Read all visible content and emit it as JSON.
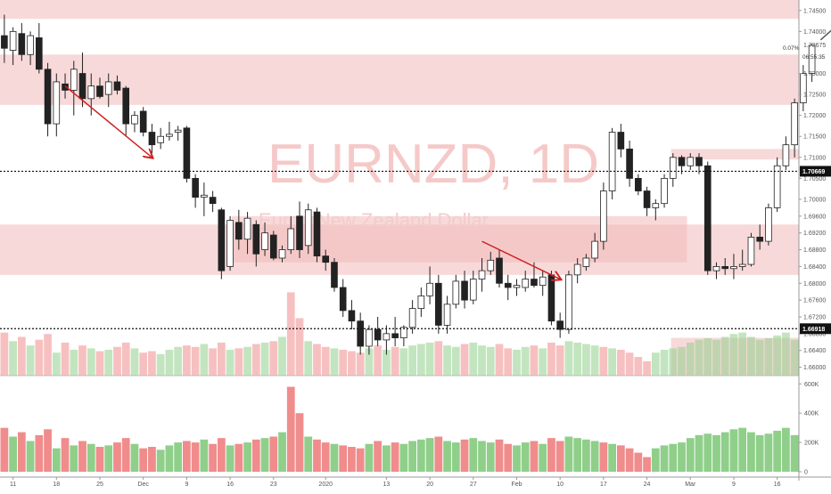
{
  "chart_data": {
    "type": "candlestick",
    "title": "EURNZD, 1D",
    "subtitle": "Euro / New Zealand Dollar",
    "interval": "1D",
    "price_axis": {
      "ylim": [
        1.658,
        1.7475
      ],
      "ticks": [
        "1.74500",
        "1.74000",
        "1.73000",
        "1.72500",
        "1.72000",
        "1.71500",
        "1.71000",
        "1.70500",
        "1.70000",
        "1.69600",
        "1.69200",
        "1.68800",
        "1.68400",
        "1.68000",
        "1.67600",
        "1.67200",
        "1.66800",
        "1.66400",
        "1.66000"
      ],
      "last_price": "1.73675",
      "last_change": "0.07%",
      "countdown": "06:55:35",
      "level_upper": "1.70669",
      "level_lower": "1.66918"
    },
    "volume_axis": {
      "ylim": [
        0,
        620
      ],
      "ticks": [
        "600K",
        "400K",
        "200K",
        "0"
      ]
    },
    "x_axis": {
      "ticks": [
        {
          "label": "11",
          "idx": 1
        },
        {
          "label": "18",
          "idx": 6
        },
        {
          "label": "25",
          "idx": 11
        },
        {
          "label": "Dec",
          "idx": 16
        },
        {
          "label": "9",
          "idx": 21
        },
        {
          "label": "16",
          "idx": 26
        },
        {
          "label": "23",
          "idx": 31
        },
        {
          "label": "2020",
          "idx": 37
        },
        {
          "label": "13",
          "idx": 44
        },
        {
          "label": "20",
          "idx": 49
        },
        {
          "label": "27",
          "idx": 54
        },
        {
          "label": "Feb",
          "idx": 59
        },
        {
          "label": "10",
          "idx": 64
        },
        {
          "label": "17",
          "idx": 69
        },
        {
          "label": "24",
          "idx": 74
        },
        {
          "label": "Mar",
          "idx": 79
        },
        {
          "label": "9",
          "idx": 84
        },
        {
          "label": "16",
          "idx": 89
        }
      ],
      "total_slots": 92
    },
    "candles": [
      {
        "o": 1.739,
        "h": 1.744,
        "l": 1.7325,
        "c": 1.736
      },
      {
        "o": 1.7355,
        "h": 1.741,
        "l": 1.732,
        "c": 1.74
      },
      {
        "o": 1.7395,
        "h": 1.742,
        "l": 1.733,
        "c": 1.7345
      },
      {
        "o": 1.7345,
        "h": 1.74,
        "l": 1.732,
        "c": 1.739
      },
      {
        "o": 1.7385,
        "h": 1.742,
        "l": 1.73,
        "c": 1.731
      },
      {
        "o": 1.731,
        "h": 1.7325,
        "l": 1.715,
        "c": 1.718
      },
      {
        "o": 1.718,
        "h": 1.73,
        "l": 1.715,
        "c": 1.728
      },
      {
        "o": 1.7275,
        "h": 1.73,
        "l": 1.724,
        "c": 1.726
      },
      {
        "o": 1.726,
        "h": 1.733,
        "l": 1.72,
        "c": 1.731
      },
      {
        "o": 1.73,
        "h": 1.735,
        "l": 1.722,
        "c": 1.724
      },
      {
        "o": 1.724,
        "h": 1.73,
        "l": 1.72,
        "c": 1.727
      },
      {
        "o": 1.727,
        "h": 1.729,
        "l": 1.724,
        "c": 1.7245
      },
      {
        "o": 1.725,
        "h": 1.73,
        "l": 1.722,
        "c": 1.728
      },
      {
        "o": 1.728,
        "h": 1.7295,
        "l": 1.725,
        "c": 1.726
      },
      {
        "o": 1.7265,
        "h": 1.727,
        "l": 1.715,
        "c": 1.718
      },
      {
        "o": 1.718,
        "h": 1.721,
        "l": 1.716,
        "c": 1.72
      },
      {
        "o": 1.721,
        "h": 1.722,
        "l": 1.715,
        "c": 1.716
      },
      {
        "o": 1.716,
        "h": 1.718,
        "l": 1.711,
        "c": 1.713
      },
      {
        "o": 1.7135,
        "h": 1.717,
        "l": 1.712,
        "c": 1.715
      },
      {
        "o": 1.715,
        "h": 1.7185,
        "l": 1.714,
        "c": 1.7155
      },
      {
        "o": 1.716,
        "h": 1.7175,
        "l": 1.714,
        "c": 1.7165
      },
      {
        "o": 1.717,
        "h": 1.7175,
        "l": 1.704,
        "c": 1.705
      },
      {
        "o": 1.705,
        "h": 1.706,
        "l": 1.698,
        "c": 1.7005
      },
      {
        "o": 1.7005,
        "h": 1.704,
        "l": 1.696,
        "c": 1.701
      },
      {
        "o": 1.7005,
        "h": 1.702,
        "l": 1.697,
        "c": 1.699
      },
      {
        "o": 1.6975,
        "h": 1.698,
        "l": 1.681,
        "c": 1.683
      },
      {
        "o": 1.684,
        "h": 1.696,
        "l": 1.683,
        "c": 1.695
      },
      {
        "o": 1.6945,
        "h": 1.6975,
        "l": 1.688,
        "c": 1.6905
      },
      {
        "o": 1.6905,
        "h": 1.697,
        "l": 1.687,
        "c": 1.6955
      },
      {
        "o": 1.694,
        "h": 1.695,
        "l": 1.684,
        "c": 1.687
      },
      {
        "o": 1.688,
        "h": 1.6945,
        "l": 1.6865,
        "c": 1.692
      },
      {
        "o": 1.6915,
        "h": 1.6925,
        "l": 1.6855,
        "c": 1.686
      },
      {
        "o": 1.686,
        "h": 1.689,
        "l": 1.685,
        "c": 1.688
      },
      {
        "o": 1.688,
        "h": 1.696,
        "l": 1.687,
        "c": 1.693
      },
      {
        "o": 1.696,
        "h": 1.6995,
        "l": 1.686,
        "c": 1.688
      },
      {
        "o": 1.689,
        "h": 1.699,
        "l": 1.687,
        "c": 1.6975
      },
      {
        "o": 1.697,
        "h": 1.698,
        "l": 1.685,
        "c": 1.6865
      },
      {
        "o": 1.6865,
        "h": 1.688,
        "l": 1.683,
        "c": 1.685
      },
      {
        "o": 1.685,
        "h": 1.686,
        "l": 1.678,
        "c": 1.679
      },
      {
        "o": 1.679,
        "h": 1.681,
        "l": 1.672,
        "c": 1.6735
      },
      {
        "o": 1.6735,
        "h": 1.676,
        "l": 1.669,
        "c": 1.671
      },
      {
        "o": 1.671,
        "h": 1.673,
        "l": 1.663,
        "c": 1.665
      },
      {
        "o": 1.665,
        "h": 1.67,
        "l": 1.663,
        "c": 1.669
      },
      {
        "o": 1.669,
        "h": 1.672,
        "l": 1.665,
        "c": 1.6665
      },
      {
        "o": 1.6665,
        "h": 1.67,
        "l": 1.663,
        "c": 1.668
      },
      {
        "o": 1.668,
        "h": 1.672,
        "l": 1.665,
        "c": 1.667
      },
      {
        "o": 1.667,
        "h": 1.67,
        "l": 1.665,
        "c": 1.6695
      },
      {
        "o": 1.6695,
        "h": 1.676,
        "l": 1.668,
        "c": 1.674
      },
      {
        "o": 1.674,
        "h": 1.679,
        "l": 1.672,
        "c": 1.677
      },
      {
        "o": 1.677,
        "h": 1.684,
        "l": 1.675,
        "c": 1.68
      },
      {
        "o": 1.68,
        "h": 1.682,
        "l": 1.668,
        "c": 1.67
      },
      {
        "o": 1.67,
        "h": 1.677,
        "l": 1.668,
        "c": 1.675
      },
      {
        "o": 1.675,
        "h": 1.682,
        "l": 1.674,
        "c": 1.6805
      },
      {
        "o": 1.6805,
        "h": 1.683,
        "l": 1.674,
        "c": 1.676
      },
      {
        "o": 1.676,
        "h": 1.683,
        "l": 1.675,
        "c": 1.681
      },
      {
        "o": 1.681,
        "h": 1.686,
        "l": 1.678,
        "c": 1.683
      },
      {
        "o": 1.683,
        "h": 1.6875,
        "l": 1.682,
        "c": 1.6855
      },
      {
        "o": 1.686,
        "h": 1.688,
        "l": 1.679,
        "c": 1.68
      },
      {
        "o": 1.68,
        "h": 1.682,
        "l": 1.676,
        "c": 1.679
      },
      {
        "o": 1.679,
        "h": 1.681,
        "l": 1.677,
        "c": 1.6795
      },
      {
        "o": 1.679,
        "h": 1.683,
        "l": 1.678,
        "c": 1.681
      },
      {
        "o": 1.681,
        "h": 1.685,
        "l": 1.679,
        "c": 1.6795
      },
      {
        "o": 1.6795,
        "h": 1.683,
        "l": 1.677,
        "c": 1.6815
      },
      {
        "o": 1.682,
        "h": 1.683,
        "l": 1.67,
        "c": 1.671
      },
      {
        "o": 1.671,
        "h": 1.673,
        "l": 1.667,
        "c": 1.669
      },
      {
        "o": 1.669,
        "h": 1.683,
        "l": 1.668,
        "c": 1.682
      },
      {
        "o": 1.682,
        "h": 1.686,
        "l": 1.68,
        "c": 1.6845
      },
      {
        "o": 1.684,
        "h": 1.687,
        "l": 1.683,
        "c": 1.686
      },
      {
        "o": 1.686,
        "h": 1.692,
        "l": 1.685,
        "c": 1.69
      },
      {
        "o": 1.69,
        "h": 1.704,
        "l": 1.688,
        "c": 1.702
      },
      {
        "o": 1.702,
        "h": 1.717,
        "l": 1.7,
        "c": 1.716
      },
      {
        "o": 1.716,
        "h": 1.718,
        "l": 1.71,
        "c": 1.712
      },
      {
        "o": 1.712,
        "h": 1.714,
        "l": 1.703,
        "c": 1.705
      },
      {
        "o": 1.705,
        "h": 1.706,
        "l": 1.701,
        "c": 1.702
      },
      {
        "o": 1.702,
        "h": 1.703,
        "l": 1.696,
        "c": 1.698
      },
      {
        "o": 1.698,
        "h": 1.7,
        "l": 1.695,
        "c": 1.699
      },
      {
        "o": 1.699,
        "h": 1.706,
        "l": 1.698,
        "c": 1.705
      },
      {
        "o": 1.705,
        "h": 1.711,
        "l": 1.703,
        "c": 1.71
      },
      {
        "o": 1.71,
        "h": 1.7105,
        "l": 1.706,
        "c": 1.708
      },
      {
        "o": 1.708,
        "h": 1.711,
        "l": 1.707,
        "c": 1.71
      },
      {
        "o": 1.71,
        "h": 1.711,
        "l": 1.706,
        "c": 1.708
      },
      {
        "o": 1.708,
        "h": 1.709,
        "l": 1.682,
        "c": 1.683
      },
      {
        "o": 1.683,
        "h": 1.685,
        "l": 1.681,
        "c": 1.684
      },
      {
        "o": 1.684,
        "h": 1.686,
        "l": 1.682,
        "c": 1.6835
      },
      {
        "o": 1.6835,
        "h": 1.687,
        "l": 1.681,
        "c": 1.684
      },
      {
        "o": 1.684,
        "h": 1.688,
        "l": 1.683,
        "c": 1.6845
      },
      {
        "o": 1.6845,
        "h": 1.692,
        "l": 1.684,
        "c": 1.691
      },
      {
        "o": 1.691,
        "h": 1.694,
        "l": 1.688,
        "c": 1.69
      },
      {
        "o": 1.69,
        "h": 1.699,
        "l": 1.689,
        "c": 1.698
      },
      {
        "o": 1.698,
        "h": 1.71,
        "l": 1.697,
        "c": 1.708
      },
      {
        "o": 1.708,
        "h": 1.715,
        "l": 1.707,
        "c": 1.713
      },
      {
        "o": 1.713,
        "h": 1.724,
        "l": 1.71,
        "c": 1.723
      },
      {
        "o": 1.723,
        "h": 1.732,
        "l": 1.721,
        "c": 1.73
      },
      {
        "o": 1.73,
        "h": 1.737,
        "l": 1.728,
        "c": 1.7367
      }
    ],
    "volumes": [
      {
        "v": 300,
        "up": false
      },
      {
        "v": 240,
        "up": true
      },
      {
        "v": 270,
        "up": false
      },
      {
        "v": 210,
        "up": true
      },
      {
        "v": 250,
        "up": false
      },
      {
        "v": 290,
        "up": false
      },
      {
        "v": 160,
        "up": true
      },
      {
        "v": 230,
        "up": false
      },
      {
        "v": 180,
        "up": true
      },
      {
        "v": 210,
        "up": false
      },
      {
        "v": 190,
        "up": true
      },
      {
        "v": 170,
        "up": false
      },
      {
        "v": 180,
        "up": true
      },
      {
        "v": 200,
        "up": false
      },
      {
        "v": 230,
        "up": false
      },
      {
        "v": 190,
        "up": true
      },
      {
        "v": 160,
        "up": false
      },
      {
        "v": 170,
        "up": false
      },
      {
        "v": 150,
        "up": true
      },
      {
        "v": 180,
        "up": true
      },
      {
        "v": 200,
        "up": true
      },
      {
        "v": 210,
        "up": false
      },
      {
        "v": 200,
        "up": false
      },
      {
        "v": 220,
        "up": true
      },
      {
        "v": 190,
        "up": false
      },
      {
        "v": 230,
        "up": false
      },
      {
        "v": 180,
        "up": true
      },
      {
        "v": 190,
        "up": false
      },
      {
        "v": 200,
        "up": true
      },
      {
        "v": 220,
        "up": false
      },
      {
        "v": 230,
        "up": true
      },
      {
        "v": 240,
        "up": false
      },
      {
        "v": 270,
        "up": true
      },
      {
        "v": 580,
        "up": false
      },
      {
        "v": 400,
        "up": false
      },
      {
        "v": 240,
        "up": true
      },
      {
        "v": 220,
        "up": false
      },
      {
        "v": 200,
        "up": false
      },
      {
        "v": 190,
        "up": true
      },
      {
        "v": 180,
        "up": false
      },
      {
        "v": 170,
        "up": false
      },
      {
        "v": 160,
        "up": false
      },
      {
        "v": 190,
        "up": true
      },
      {
        "v": 210,
        "up": false
      },
      {
        "v": 180,
        "up": true
      },
      {
        "v": 200,
        "up": false
      },
      {
        "v": 190,
        "up": true
      },
      {
        "v": 210,
        "up": true
      },
      {
        "v": 220,
        "up": true
      },
      {
        "v": 230,
        "up": true
      },
      {
        "v": 240,
        "up": false
      },
      {
        "v": 210,
        "up": true
      },
      {
        "v": 200,
        "up": true
      },
      {
        "v": 220,
        "up": false
      },
      {
        "v": 230,
        "up": true
      },
      {
        "v": 210,
        "up": true
      },
      {
        "v": 200,
        "up": true
      },
      {
        "v": 220,
        "up": false
      },
      {
        "v": 190,
        "up": false
      },
      {
        "v": 180,
        "up": true
      },
      {
        "v": 200,
        "up": true
      },
      {
        "v": 210,
        "up": false
      },
      {
        "v": 190,
        "up": true
      },
      {
        "v": 230,
        "up": false
      },
      {
        "v": 210,
        "up": false
      },
      {
        "v": 240,
        "up": true
      },
      {
        "v": 230,
        "up": true
      },
      {
        "v": 220,
        "up": true
      },
      {
        "v": 210,
        "up": true
      },
      {
        "v": 200,
        "up": false
      },
      {
        "v": 190,
        "up": true
      },
      {
        "v": 180,
        "up": false
      },
      {
        "v": 160,
        "up": false
      },
      {
        "v": 130,
        "up": false
      },
      {
        "v": 100,
        "up": false
      },
      {
        "v": 160,
        "up": true
      },
      {
        "v": 180,
        "up": true
      },
      {
        "v": 190,
        "up": true
      },
      {
        "v": 200,
        "up": true
      },
      {
        "v": 230,
        "up": true
      },
      {
        "v": 250,
        "up": true
      },
      {
        "v": 260,
        "up": true
      },
      {
        "v": 250,
        "up": true
      },
      {
        "v": 270,
        "up": true
      },
      {
        "v": 290,
        "up": true
      },
      {
        "v": 300,
        "up": true
      },
      {
        "v": 270,
        "up": true
      },
      {
        "v": 250,
        "up": true
      },
      {
        "v": 260,
        "up": true
      },
      {
        "v": 280,
        "up": true
      },
      {
        "v": 300,
        "up": true
      },
      {
        "v": 250,
        "up": true
      }
    ],
    "zones": [
      {
        "top": 1.7475,
        "bottom": 1.743,
        "x_from": 0,
        "x_to": 1
      },
      {
        "top": 1.7345,
        "bottom": 1.7225,
        "x_from": 0,
        "x_to": 1
      },
      {
        "top": 1.712,
        "bottom": 1.7095,
        "x_from": 0.84,
        "x_to": 1
      },
      {
        "top": 1.696,
        "bottom": 1.685,
        "x_from": 0.29,
        "x_to": 0.86
      },
      {
        "top": 1.694,
        "bottom": 1.682,
        "x_from": 0,
        "x_to": 1
      },
      {
        "top": 1.667,
        "bottom": 1.658,
        "x_from": 0.84,
        "x_to": 1
      }
    ],
    "trend_arrows": [
      {
        "from": [
          7,
          1.727
        ],
        "to": [
          17,
          1.71
        ],
        "color": "#cc2222"
      },
      {
        "from": [
          55,
          1.69
        ],
        "to": [
          64,
          1.681
        ],
        "color": "#cc2222"
      },
      {
        "from": [
          94,
          1.738
        ],
        "to": [
          97,
          1.7435
        ],
        "color": "#555555"
      }
    ],
    "colors": {
      "up": "#ffffff",
      "down": "#222222",
      "vol_up": "#8fcf8a",
      "vol_down": "#f08c8c",
      "zone": "#f3b9b9"
    }
  }
}
